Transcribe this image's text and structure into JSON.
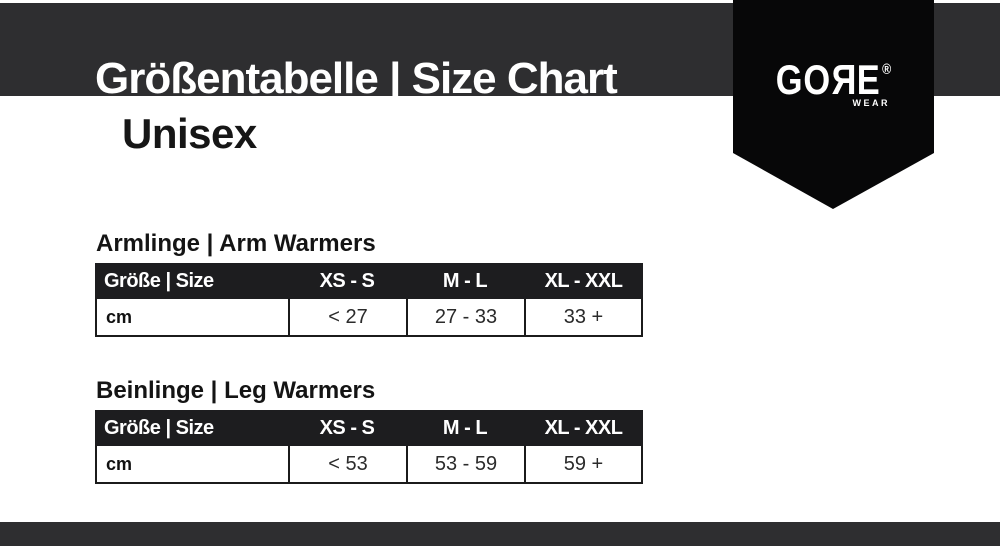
{
  "header": {
    "title": "Größentabelle | Size Chart",
    "subtitle": "Unisex"
  },
  "brand": {
    "name_go": "GO",
    "name_r_mirrored": "R",
    "name_e": "E",
    "registered_mark": "®",
    "subbrand": "WEAR"
  },
  "sections": [
    {
      "heading": "Armlinge | Arm Warmers",
      "table": {
        "headers": [
          "Größe | Size",
          "XS - S",
          "M - L",
          "XL - XXL"
        ],
        "rows": [
          [
            "cm",
            "< 27",
            "27 - 33",
            "33 +"
          ]
        ]
      }
    },
    {
      "heading": "Beinlinge | Leg Warmers",
      "table": {
        "headers": [
          "Größe | Size",
          "XS - S",
          "M - L",
          "XL - XXL"
        ],
        "rows": [
          [
            "cm",
            "< 53",
            "53 - 59",
            "59 +"
          ]
        ]
      }
    }
  ],
  "colors": {
    "bar_gray": "#2e2e30",
    "banner_black": "#070708",
    "table_header_bg": "#1d1d1f",
    "border": "#1b1b1b",
    "text_dark": "#161616",
    "text_white": "#ffffff"
  }
}
